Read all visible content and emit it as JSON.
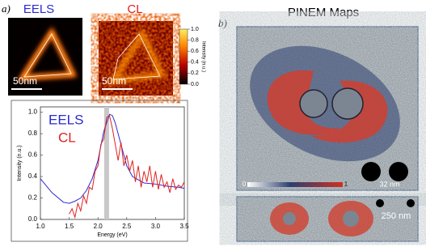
{
  "figure": {
    "panel_a": "a)",
    "panel_b": "b)",
    "eels_map_title": "EELS",
    "cl_map_title": "CL",
    "eels_scale": "50nm",
    "cl_scale": "50nm",
    "pinem_title": "PINEM Maps",
    "pinem_scale_top": "32 nm",
    "pinem_scale_bottom": "250 nm"
  },
  "colorbar": {
    "label": "Intensity (n.u.)",
    "lim": [
      0,
      1
    ],
    "ticks": [
      {
        "value": 0,
        "label": "0.0"
      },
      {
        "value": 0.2,
        "label": "0.2"
      },
      {
        "value": 0.4,
        "label": "0.4"
      },
      {
        "value": 0.6,
        "label": "0.6"
      },
      {
        "value": 0.8,
        "label": "0.8"
      },
      {
        "value": 1,
        "label": "1.0"
      }
    ]
  },
  "pinem_colorbar": {
    "lim": [
      0,
      1
    ],
    "ticks": [
      0,
      1
    ]
  },
  "chart_data": {
    "type": "line",
    "xlabel": "Energy (eV)",
    "ylabel": "Intensity (n.u.)",
    "xlim": [
      1.0,
      3.5
    ],
    "ylim": [
      0.0,
      1.05
    ],
    "xticks": [
      {
        "value": 1.0,
        "label": "1.0"
      },
      {
        "value": 1.5,
        "label": "1.5"
      },
      {
        "value": 2.0,
        "label": "2.0"
      },
      {
        "value": 2.5,
        "label": "2.5"
      },
      {
        "value": 3.0,
        "label": "3.0"
      },
      {
        "value": 3.5,
        "label": "3.5"
      }
    ],
    "yticks": [
      {
        "value": 0.0,
        "label": "0.0"
      },
      {
        "value": 0.2,
        "label": "0.2"
      },
      {
        "value": 0.4,
        "label": "0.4"
      },
      {
        "value": 0.6,
        "label": "0.6"
      },
      {
        "value": 0.8,
        "label": "0.8"
      },
      {
        "value": 1.0,
        "label": "1.0"
      }
    ],
    "highlight_x": 2.15,
    "series": [
      {
        "name": "EELS",
        "color": "#2a2ad0",
        "x": [
          1.0,
          1.2,
          1.4,
          1.5,
          1.6,
          1.7,
          1.8,
          1.9,
          2.0,
          2.1,
          2.2,
          2.25,
          2.3,
          2.4,
          2.5,
          2.6,
          2.8,
          3.0,
          3.2,
          3.4,
          3.5
        ],
        "values": [
          0.38,
          0.25,
          0.16,
          0.15,
          0.17,
          0.2,
          0.27,
          0.38,
          0.55,
          0.82,
          0.98,
          0.97,
          0.9,
          0.7,
          0.5,
          0.4,
          0.34,
          0.33,
          0.31,
          0.3,
          0.29
        ]
      },
      {
        "name": "CL",
        "color": "#e02020",
        "x": [
          1.5,
          1.55,
          1.6,
          1.65,
          1.7,
          1.75,
          1.8,
          1.85,
          1.9,
          1.95,
          2.0,
          2.05,
          2.1,
          2.15,
          2.2,
          2.25,
          2.3,
          2.35,
          2.4,
          2.45,
          2.5,
          2.55,
          2.6,
          2.65,
          2.7,
          2.75,
          2.8,
          2.85,
          2.9,
          2.95,
          3.0,
          3.05,
          3.1,
          3.15,
          3.2,
          3.25,
          3.3,
          3.35,
          3.4,
          3.45,
          3.5
        ],
        "values": [
          0.05,
          0.1,
          0.02,
          0.15,
          0.08,
          0.22,
          0.15,
          0.3,
          0.28,
          0.45,
          0.5,
          0.7,
          0.75,
          0.95,
          0.97,
          0.85,
          0.7,
          0.55,
          0.72,
          0.5,
          0.6,
          0.45,
          0.55,
          0.35,
          0.5,
          0.3,
          0.45,
          0.35,
          0.5,
          0.3,
          0.45,
          0.28,
          0.42,
          0.3,
          0.35,
          0.25,
          0.38,
          0.28,
          0.32,
          0.3,
          0.35
        ]
      }
    ]
  }
}
